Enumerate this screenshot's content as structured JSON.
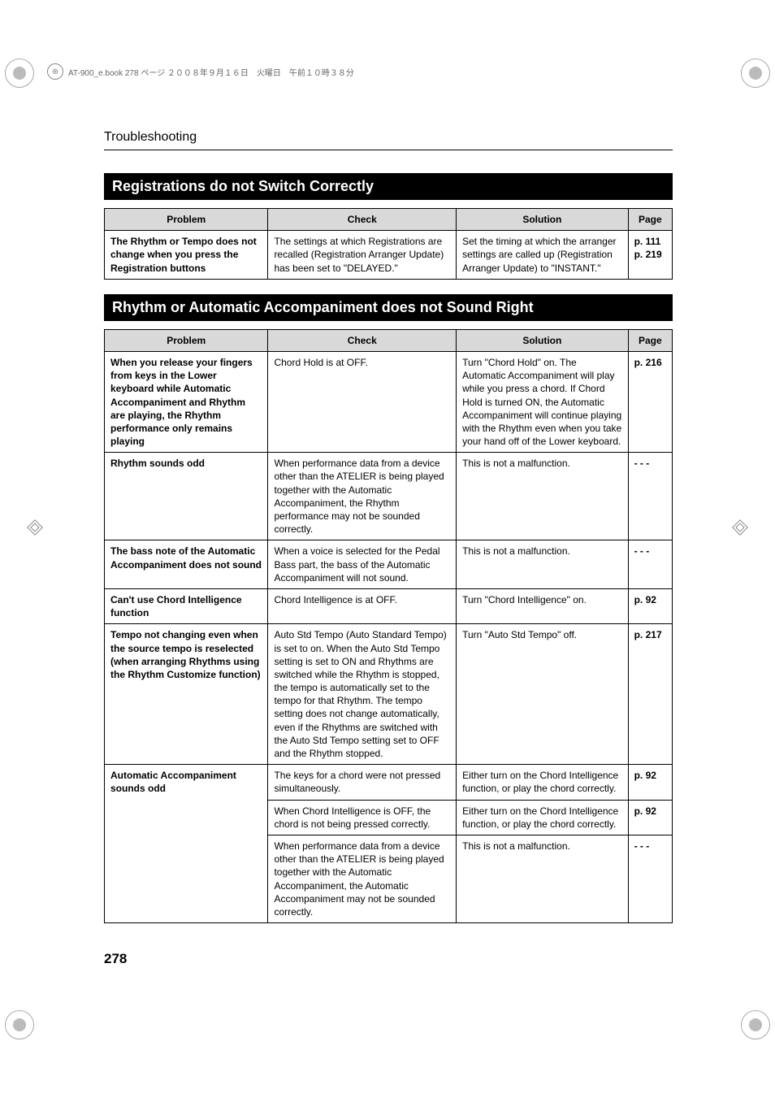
{
  "running_head": "Troubleshooting",
  "page_number": "278",
  "binder_text": "AT-900_e.book  278 ページ  ２００８年９月１６日　火曜日　午前１０時３８分",
  "headers": {
    "problem": "Problem",
    "check": "Check",
    "solution": "Solution",
    "page": "Page"
  },
  "sections": [
    {
      "title": "Registrations do not Switch Correctly",
      "rows": [
        {
          "problem": "The Rhythm or Tempo does not change when you press the Registration buttons",
          "check": "The settings at which Registrations are recalled (Registration Arranger Update) has been set to \"DELAYED.\"",
          "solution": "Set the timing at which the arranger settings are called up (Registration Arranger Update) to \"INSTANT.\"",
          "page": "p. 111\np. 219"
        }
      ]
    },
    {
      "title": "Rhythm or Automatic Accompaniment does not Sound Right",
      "rows": [
        {
          "problem": "When you release your fingers from keys in the Lower keyboard while Automatic Accompaniment and Rhythm are playing, the Rhythm performance only remains playing",
          "check": "Chord Hold is at OFF.",
          "solution": "Turn \"Chord Hold\" on.\nThe Automatic Accompaniment will play while you press a chord. If Chord Hold is turned ON, the Automatic Accompaniment will continue playing with the Rhythm even when you take your hand off of the Lower keyboard.",
          "page": "p. 216"
        },
        {
          "problem": "Rhythm sounds odd",
          "check": "When performance data from a device other than the ATELIER is being played together with the Automatic Accompaniment, the Rhythm performance may not be sounded correctly.",
          "solution": "This is not a malfunction.",
          "page": "- - -"
        },
        {
          "problem": "The bass note of the Automatic Accompaniment does not sound",
          "check": "When a voice is selected for the Pedal Bass part, the bass of the Automatic Accompaniment will not sound.",
          "solution": "This is not a malfunction.",
          "page": "- - -"
        },
        {
          "problem": "Can't use Chord Intelligence function",
          "check": "Chord Intelligence is at OFF.",
          "solution": "Turn \"Chord Intelligence\" on.",
          "page": "p. 92"
        },
        {
          "problem": "Tempo not changing even when the source tempo is reselected (when arranging Rhythms using the Rhythm Customize function)",
          "check": "Auto Std Tempo (Auto Standard Tempo) is set to on.\nWhen the Auto Std Tempo setting is set to ON and Rhythms are switched while the Rhythm is stopped, the tempo is automatically set to the tempo for that Rhythm.\nThe tempo setting does not change automatically, even if the Rhythms are switched with the Auto Std Tempo setting set to OFF and the Rhythm stopped.",
          "solution": "Turn \"Auto Std Tempo\" off.",
          "page": "p. 217"
        },
        {
          "problem_rowspan": 3,
          "problem": "Automatic Accompaniment sounds odd",
          "check": "The keys for a chord were not pressed simultaneously.",
          "solution": "Either turn on the Chord Intelligence function, or play the chord correctly.",
          "page": "p. 92"
        },
        {
          "check": "When Chord Intelligence is OFF, the chord is not being pressed correctly.",
          "solution": "Either turn on the Chord Intelligence function, or play the chord correctly.",
          "page": "p. 92"
        },
        {
          "check": "When performance data from a device other than the ATELIER is being played together with the Automatic Accompaniment, the Automatic Accompaniment may not be sounded correctly.",
          "solution": "This is not a malfunction.",
          "page": "- - -"
        }
      ]
    }
  ]
}
